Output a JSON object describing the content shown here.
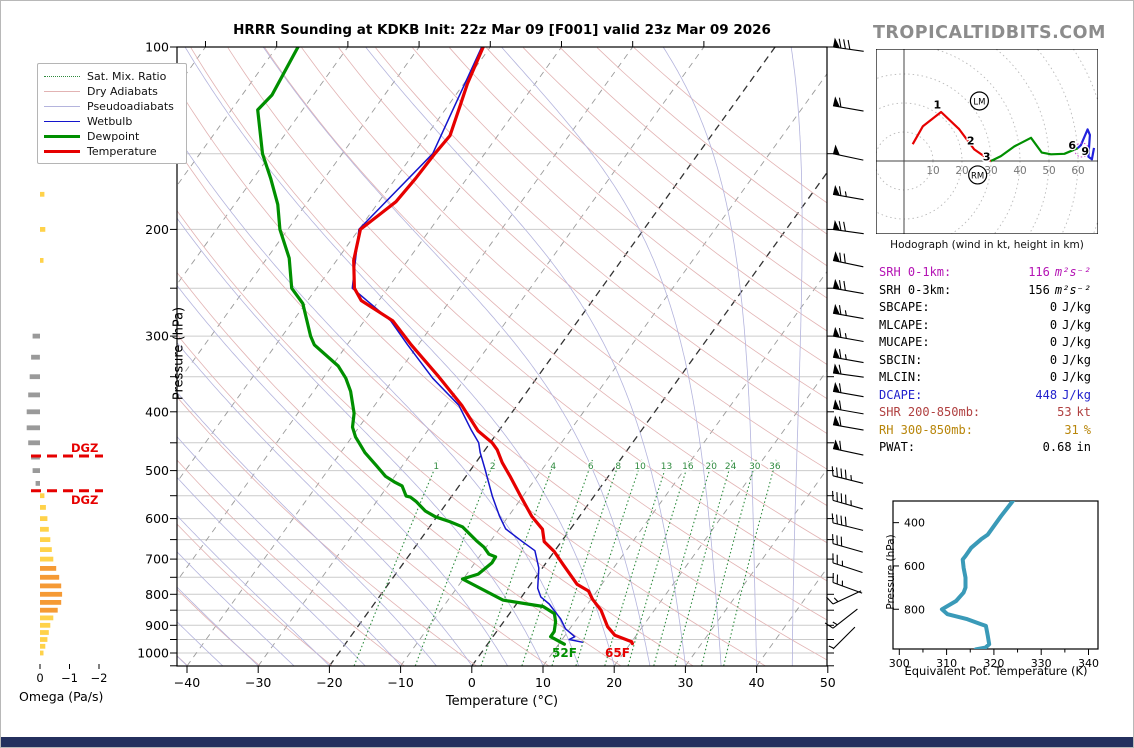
{
  "page": {
    "title": "HRRR Sounding at KDKB Init: 22z Mar 09 [F001] valid 23z Mar 09 2026",
    "watermark": "TROPICALTIDBITS.COM",
    "hodograph_caption": "Hodograph (wind in kt, height in km)"
  },
  "skewt": {
    "pressure_axis_label": "Pressure (hPa)",
    "temp_axis_label": "Temperature (°C)",
    "pressure_tick_labels": [
      100,
      200,
      300,
      400,
      500,
      600,
      700,
      800,
      900,
      1000
    ],
    "temp_tick_labels": [
      -40,
      -30,
      -20,
      -10,
      0,
      10,
      20,
      30,
      40,
      50
    ],
    "surface_temp_label": "65F",
    "surface_dewp_label": "52F",
    "dgz_label": "DGZ",
    "dgz_pressures": [
      473,
      540
    ],
    "mixing_ratio_values": [
      1,
      2,
      4,
      6,
      8,
      10,
      13,
      16,
      20,
      24,
      30,
      36
    ],
    "colors": {
      "temperature": "#e60000",
      "dewpoint": "#008f00",
      "wetbulb": "#1414cc",
      "dry_adiabat": "#e2b3b3",
      "pseudoadiabat": "#b4b4dd",
      "mix_ratio": "#2e8b3e",
      "isotherm": "#9b9b9b",
      "isotherm_special": "#333333",
      "gridline": "#cccccc",
      "dgz": "#e60000",
      "barb": "#000000"
    },
    "legend": [
      {
        "label": "Sat. Mix. Ratio",
        "style": "dotted",
        "color": "#2e8b3e",
        "weight": 1
      },
      {
        "label": "Dry Adiabats",
        "style": "solid",
        "color": "#e2b3b3",
        "weight": 1
      },
      {
        "label": "Pseudoadiabats",
        "style": "solid",
        "color": "#b4b4dd",
        "weight": 1
      },
      {
        "label": "Wetbulb",
        "style": "solid",
        "color": "#1414cc",
        "weight": 1.6
      },
      {
        "label": "Dewpoint",
        "style": "solid",
        "color": "#008f00",
        "weight": 3
      },
      {
        "label": "Temperature",
        "style": "solid",
        "color": "#e60000",
        "weight": 3
      }
    ]
  },
  "stats": {
    "rows": [
      {
        "label": "SRH 0-1km:",
        "value": "116",
        "unit": "m²s⁻²",
        "color": "#b414b4",
        "unit_italic": true
      },
      {
        "label": "SRH 0-3km:",
        "value": "156",
        "unit": "m²s⁻²",
        "color": "#000000",
        "unit_italic": true
      },
      {
        "label": "SBCAPE:",
        "value": "0",
        "unit": "J/kg",
        "color": "#000000"
      },
      {
        "label": "MLCAPE:",
        "value": "0",
        "unit": "J/kg",
        "color": "#000000"
      },
      {
        "label": "MUCAPE:",
        "value": "0",
        "unit": "J/kg",
        "color": "#000000"
      },
      {
        "label": "SBCIN:",
        "value": "0",
        "unit": "J/kg",
        "color": "#000000"
      },
      {
        "label": "MLCIN:",
        "value": "0",
        "unit": "J/kg",
        "color": "#000000"
      },
      {
        "label": "DCAPE:",
        "value": "448",
        "unit": "J/kg",
        "color": "#2222cc"
      },
      {
        "label": "SHR 200-850mb:",
        "value": "53",
        "unit": "kt",
        "color": "#b04040"
      },
      {
        "label": "RH 300-850mb:",
        "value": "31",
        "unit": "%",
        "color": "#b8860b"
      },
      {
        "label": "PWAT:",
        "value": "0.68",
        "unit": "in",
        "color": "#000000"
      }
    ]
  },
  "chart_data": [
    {
      "id": "sounding",
      "type": "line",
      "title": "Skew-T log-p sounding",
      "xlabel": "Temperature (°C)",
      "ylabel": "Pressure (hPa)",
      "xlim": [
        -40,
        50
      ],
      "p_range": [
        100,
        1050
      ],
      "series": [
        {
          "name": "temperature",
          "units": "degC",
          "points": [
            [
              100,
              -61
            ],
            [
              115,
              -59.5
            ],
            [
              125,
              -58.3
            ],
            [
              140,
              -56.7
            ],
            [
              150,
              -57.0
            ],
            [
              165,
              -57.2
            ],
            [
              180,
              -57.6
            ],
            [
              200,
              -59.8
            ],
            [
              225,
              -57.6
            ],
            [
              250,
              -54.7
            ],
            [
              262,
              -52.5
            ],
            [
              283,
              -46.0
            ],
            [
              310,
              -41.0
            ],
            [
              350,
              -33.9
            ],
            [
              390,
              -27.8
            ],
            [
              430,
              -22.9
            ],
            [
              450,
              -19.7
            ],
            [
              462,
              -18.3
            ],
            [
              485,
              -16.3
            ],
            [
              510,
              -13.9
            ],
            [
              550,
              -10.4
            ],
            [
              595,
              -6.7
            ],
            [
              625,
              -3.9
            ],
            [
              655,
              -2.4
            ],
            [
              680,
              0.0
            ],
            [
              715,
              2.6
            ],
            [
              770,
              6.5
            ],
            [
              790,
              8.8
            ],
            [
              815,
              10.2
            ],
            [
              850,
              12.5
            ],
            [
              905,
              15.1
            ],
            [
              935,
              17.0
            ],
            [
              958,
              20.0
            ],
            [
              965,
              20.3
            ]
          ]
        },
        {
          "name": "dewpoint",
          "units": "degC",
          "points": [
            [
              100,
              -87
            ],
            [
              120,
              -85.8
            ],
            [
              127,
              -86.3
            ],
            [
              150,
              -81.2
            ],
            [
              165,
              -77.5
            ],
            [
              182,
              -73.9
            ],
            [
              200,
              -71.1
            ],
            [
              223,
              -66.9
            ],
            [
              250,
              -63.5
            ],
            [
              265,
              -60.4
            ],
            [
              300,
              -56.0
            ],
            [
              310,
              -54.6
            ],
            [
              336,
              -49.1
            ],
            [
              352,
              -46.8
            ],
            [
              370,
              -44.8
            ],
            [
              402,
              -42.1
            ],
            [
              424,
              -40.9
            ],
            [
              440,
              -39.5
            ],
            [
              450,
              -38.4
            ],
            [
              467,
              -36.6
            ],
            [
              492,
              -33.5
            ],
            [
              511,
              -31.3
            ],
            [
              522,
              -29.5
            ],
            [
              530,
              -28.0
            ],
            [
              551,
              -26.4
            ],
            [
              553,
              -25.7
            ],
            [
              562,
              -24.5
            ],
            [
              583,
              -22.2
            ],
            [
              596,
              -20.2
            ],
            [
              607,
              -17.7
            ],
            [
              619,
              -15.4
            ],
            [
              653,
              -12.0
            ],
            [
              669,
              -10.3
            ],
            [
              687,
              -8.9
            ],
            [
              694,
              -7.7
            ],
            [
              710,
              -7.6
            ],
            [
              741,
              -8.4
            ],
            [
              755,
              -10.1
            ],
            [
              818,
              -2.3
            ],
            [
              838,
              4.0
            ],
            [
              861,
              6.3
            ],
            [
              888,
              7.3
            ],
            [
              922,
              8.1
            ],
            [
              940,
              8.1
            ],
            [
              967,
              10.8
            ]
          ]
        },
        {
          "name": "wetbulb",
          "units": "degC",
          "points": [
            [
              100,
              -61.2
            ],
            [
              150,
              -57.3
            ],
            [
              200,
              -60.0
            ],
            [
              250,
              -55.0
            ],
            [
              283,
              -46.3
            ],
            [
              310,
              -41.5
            ],
            [
              352,
              -34.6
            ],
            [
              390,
              -28.2
            ],
            [
              429,
              -23.9
            ],
            [
              450,
              -21.6
            ],
            [
              467,
              -20.4
            ],
            [
              498,
              -18.0
            ],
            [
              551,
              -14.3
            ],
            [
              594,
              -11.3
            ],
            [
              624,
              -9.1
            ],
            [
              653,
              -5.7
            ],
            [
              678,
              -2.8
            ],
            [
              724,
              -0.5
            ],
            [
              782,
              1.4
            ],
            [
              808,
              2.7
            ],
            [
              830,
              4.6
            ],
            [
              878,
              7.7
            ],
            [
              912,
              9.4
            ],
            [
              940,
              11.5
            ],
            [
              950,
              11.0
            ],
            [
              960,
              13.2
            ]
          ]
        }
      ]
    },
    {
      "id": "omega",
      "type": "bar",
      "xlabel": "Omega (Pa/s)",
      "xticks": [
        0,
        -1,
        -2
      ],
      "bars": [
        [
          125,
          -0.12
        ],
        [
          150,
          -0.1
        ],
        [
          175,
          -0.15
        ],
        [
          200,
          -0.18
        ],
        [
          225,
          -0.12
        ],
        [
          300,
          0.25
        ],
        [
          325,
          0.3
        ],
        [
          350,
          0.35
        ],
        [
          375,
          0.4
        ],
        [
          400,
          0.45
        ],
        [
          425,
          0.45
        ],
        [
          450,
          0.4
        ],
        [
          475,
          0.3
        ],
        [
          500,
          0.25
        ],
        [
          525,
          0.15
        ],
        [
          550,
          -0.15
        ],
        [
          575,
          -0.2
        ],
        [
          600,
          -0.25
        ],
        [
          625,
          -0.3
        ],
        [
          650,
          -0.35
        ],
        [
          675,
          -0.4
        ],
        [
          700,
          -0.45
        ],
        [
          725,
          -0.55
        ],
        [
          750,
          -0.65
        ],
        [
          775,
          -0.72
        ],
        [
          800,
          -0.75
        ],
        [
          825,
          -0.72
        ],
        [
          850,
          -0.6
        ],
        [
          875,
          -0.45
        ],
        [
          900,
          -0.35
        ],
        [
          925,
          -0.3
        ],
        [
          950,
          -0.25
        ],
        [
          975,
          -0.18
        ],
        [
          1000,
          -0.12
        ]
      ],
      "colors": {
        "up_strong": "#f59a35",
        "up_weak": "#ffd24a",
        "down": "#9a9a9a"
      }
    },
    {
      "id": "wind_barbs",
      "units": "kt",
      "levels": [
        [
          100,
          80,
          8
        ],
        [
          125,
          60,
          10
        ],
        [
          150,
          52,
          12
        ],
        [
          175,
          65,
          10
        ],
        [
          200,
          70,
          8
        ],
        [
          225,
          70,
          12
        ],
        [
          250,
          70,
          10
        ],
        [
          275,
          68,
          10
        ],
        [
          300,
          67,
          10
        ],
        [
          325,
          65,
          10
        ],
        [
          345,
          60,
          8
        ],
        [
          370,
          60,
          10
        ],
        [
          395,
          60,
          10
        ],
        [
          420,
          60,
          10
        ],
        [
          460,
          60,
          12
        ],
        [
          510,
          45,
          14
        ],
        [
          560,
          45,
          16
        ],
        [
          610,
          40,
          14
        ],
        [
          660,
          30,
          16
        ],
        [
          710,
          25,
          18
        ],
        [
          765,
          25,
          20
        ],
        [
          830,
          15,
          -25
        ],
        [
          910,
          15,
          -38
        ],
        [
          985,
          5,
          -45
        ]
      ]
    },
    {
      "id": "hodograph",
      "type": "line",
      "units": "kt",
      "rings": [
        10,
        20,
        30,
        40,
        50,
        60,
        70
      ],
      "ring_labels": [
        10,
        20,
        30,
        40,
        50,
        60
      ],
      "series": [
        {
          "name": "0-3km",
          "color": "#e60000",
          "points": [
            [
              3,
              5.8
            ],
            [
              6.5,
              12
            ],
            [
              12.8,
              16.9
            ],
            [
              19,
              11
            ],
            [
              24.2,
              4
            ],
            [
              30,
              0
            ]
          ]
        },
        {
          "name": "3-6km",
          "color": "#008f00",
          "points": [
            [
              30,
              0
            ],
            [
              33.4,
              1.7
            ],
            [
              38,
              5
            ],
            [
              43.8,
              8
            ],
            [
              47.5,
              2.9
            ],
            [
              50.7,
              2.3
            ],
            [
              55.3,
              2.5
            ],
            [
              59.9,
              4.4
            ]
          ]
        },
        {
          "name": "6-9km",
          "color": "#2222dd",
          "points": [
            [
              59.9,
              4.4
            ],
            [
              61,
              5.5
            ],
            [
              63.3,
              10.9
            ],
            [
              64.1,
              9
            ],
            [
              63.6,
              1.5
            ],
            [
              64.8,
              0.6
            ],
            [
              65.5,
              4.5
            ]
          ]
        }
      ],
      "height_labels": [
        {
          "text": "1",
          "u": 11.5,
          "v": 19.5
        },
        {
          "text": "2",
          "u": 23,
          "v": 7
        },
        {
          "text": "3",
          "u": 28.5,
          "v": 1.5
        },
        {
          "text": "6",
          "u": 58,
          "v": 5.5
        },
        {
          "text": "9",
          "u": 62.5,
          "v": 3.5
        }
      ],
      "markers": [
        {
          "text": "LM",
          "u": 26,
          "v": 20.7
        },
        {
          "text": "RM",
          "u": 25.4,
          "v": -4.8
        }
      ],
      "storm_motion_ring": {
        "u": 61.3,
        "v": 3.8
      }
    },
    {
      "id": "theta_e",
      "type": "line",
      "xlabel": "Equivalent Pot. Temperature (K)",
      "ylabel": "Pressure (hPa)",
      "xticks": [
        300,
        310,
        320,
        330,
        340
      ],
      "yticks": [
        400,
        600,
        800
      ],
      "xlim": [
        298.5,
        341.5
      ],
      "p_range": [
        300,
        985
      ],
      "color": "#3a9ab8",
      "points": [
        [
          300,
          324
        ],
        [
          370,
          321.5
        ],
        [
          455,
          318.7
        ],
        [
          477,
          317.3
        ],
        [
          516,
          315.2
        ],
        [
          554,
          314
        ],
        [
          570,
          313.4
        ],
        [
          608,
          313.6
        ],
        [
          654,
          314
        ],
        [
          700,
          314
        ],
        [
          723,
          313.6
        ],
        [
          762,
          312
        ],
        [
          800,
          309
        ],
        [
          823,
          310.2
        ],
        [
          846,
          314.4
        ],
        [
          869,
          317.3
        ],
        [
          877,
          318.3
        ],
        [
          923,
          318.7
        ],
        [
          962,
          319
        ],
        [
          977,
          318.2
        ],
        [
          985,
          316.2
        ]
      ]
    }
  ]
}
